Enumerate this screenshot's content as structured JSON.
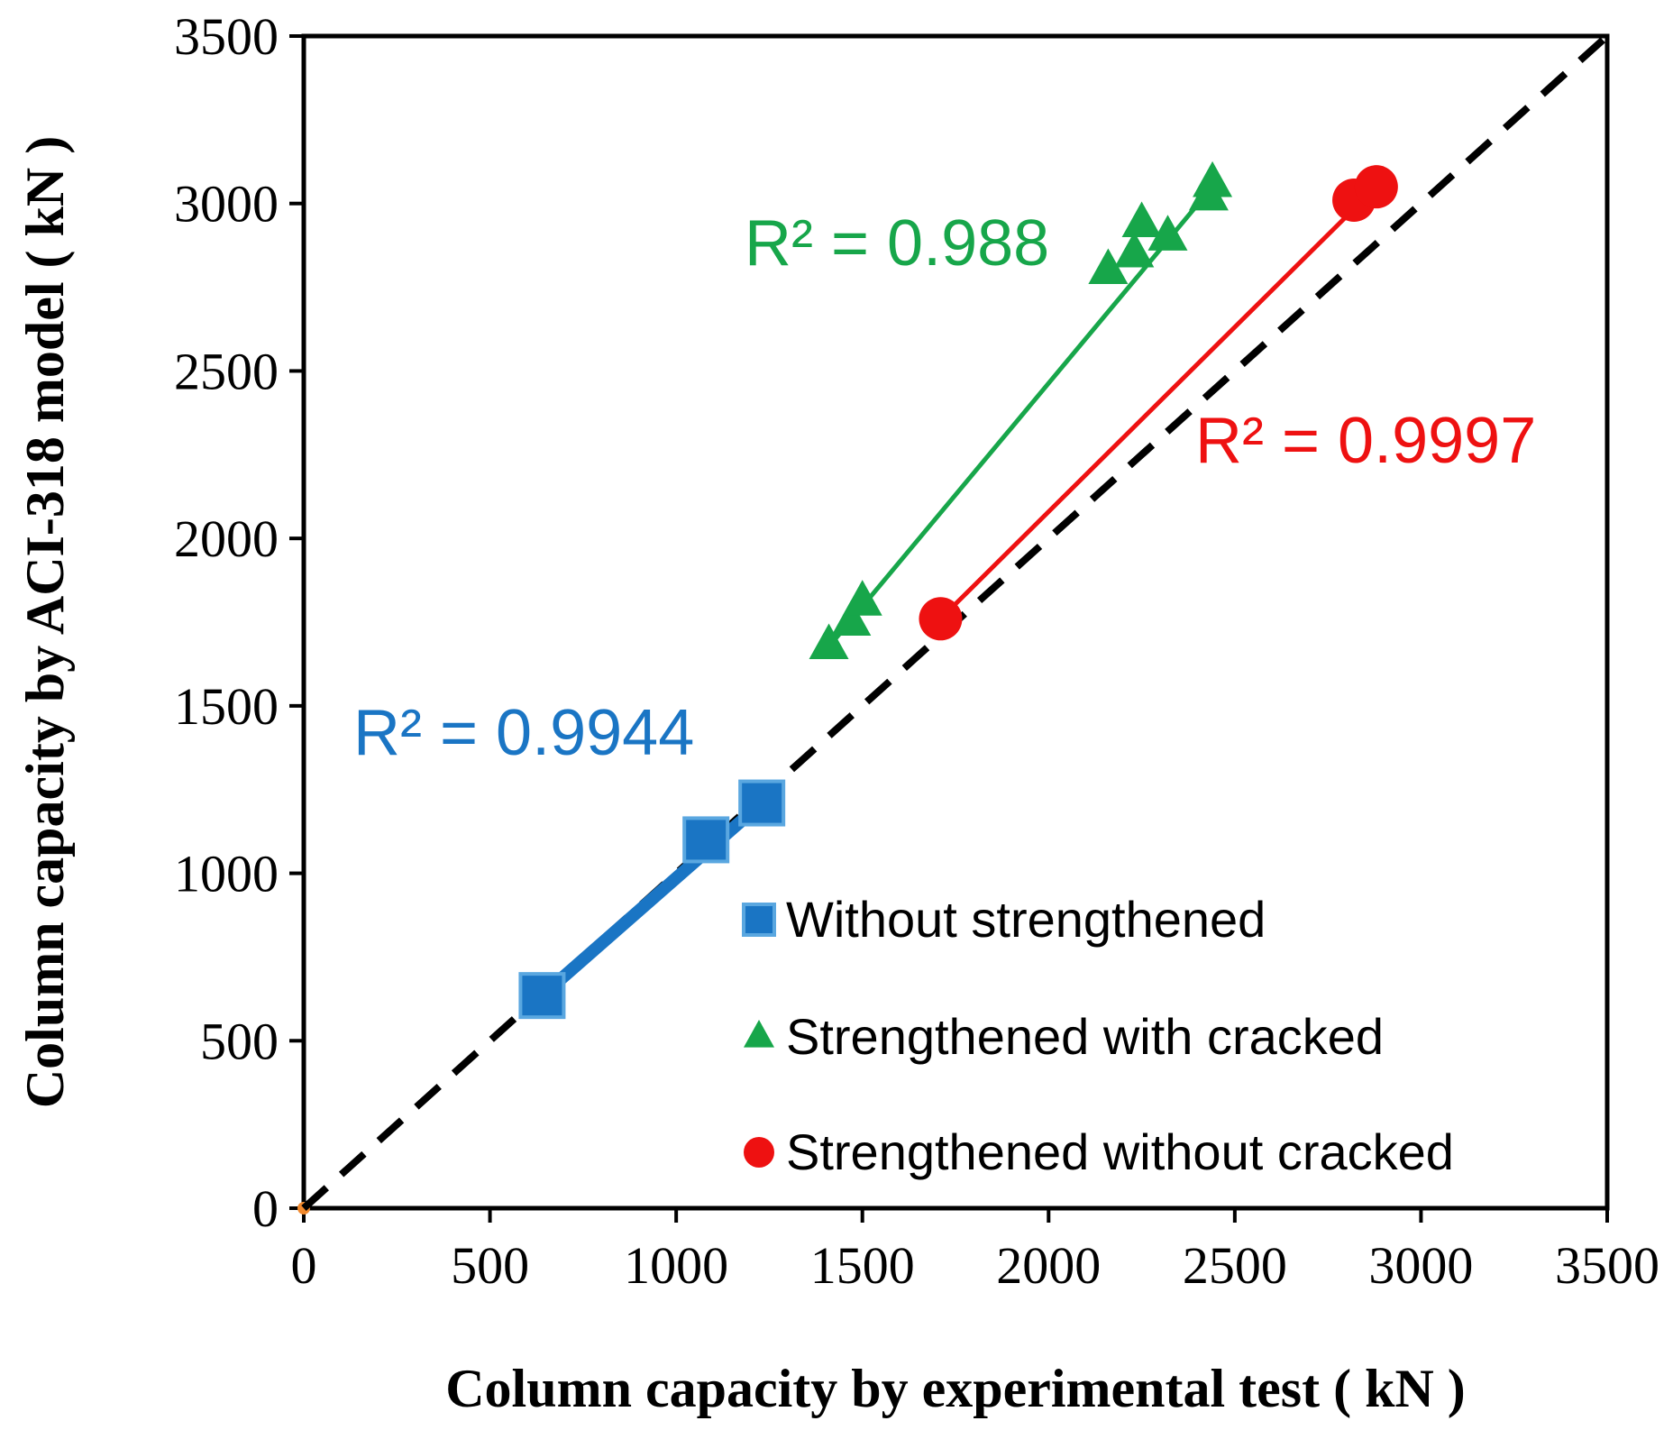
{
  "chart_data": {
    "type": "scatter",
    "title": "",
    "xlabel": "Column capacity by experimental test ( kN )",
    "ylabel": "Column capacity by ACI-318  model ( kN )",
    "xlim": [
      0,
      3500
    ],
    "ylim": [
      0,
      3500
    ],
    "xticks": [
      "0",
      "500",
      "1000",
      "1500",
      "2000",
      "2500",
      "3000",
      "3500"
    ],
    "yticks": [
      "0",
      "500",
      "1000",
      "1500",
      "2000",
      "2500",
      "3000",
      "3500"
    ],
    "grid": false,
    "reference_line": {
      "name": "y = x",
      "style": "dashed",
      "color": "#000000",
      "from": [
        0,
        0
      ],
      "to": [
        3500,
        3500
      ]
    },
    "legend_position": "bottom-right",
    "series": [
      {
        "name": "Without strengthened",
        "marker": "square",
        "color": "#1a75c4",
        "x": [
          640,
          1080,
          1230
        ],
        "y": [
          635,
          1100,
          1210
        ],
        "r2_label": "R² = 0.9944",
        "trendline": {
          "from": [
            640,
            635
          ],
          "to": [
            1230,
            1210
          ]
        }
      },
      {
        "name": "Strengthened with cracked",
        "marker": "triangle",
        "color": "#17a64a",
        "x": [
          1410,
          1470,
          1500,
          2160,
          2230,
          2250,
          2320,
          2430,
          2440
        ],
        "y": [
          1680,
          1750,
          1810,
          2800,
          2850,
          2940,
          2900,
          3020,
          3060
        ],
        "r2_label": "R² = 0.988",
        "trendline": {
          "from": [
            1420,
            1690
          ],
          "to": [
            2440,
            3050
          ]
        }
      },
      {
        "name": "Strengthened without cracked",
        "marker": "circle",
        "color": "#ee1111",
        "x": [
          1710,
          2820,
          2880
        ],
        "y": [
          1760,
          3010,
          3050
        ],
        "r2_label": "R² = 0.9997",
        "trendline": {
          "from": [
            1710,
            1760
          ],
          "to": [
            2880,
            3050
          ]
        }
      }
    ]
  }
}
